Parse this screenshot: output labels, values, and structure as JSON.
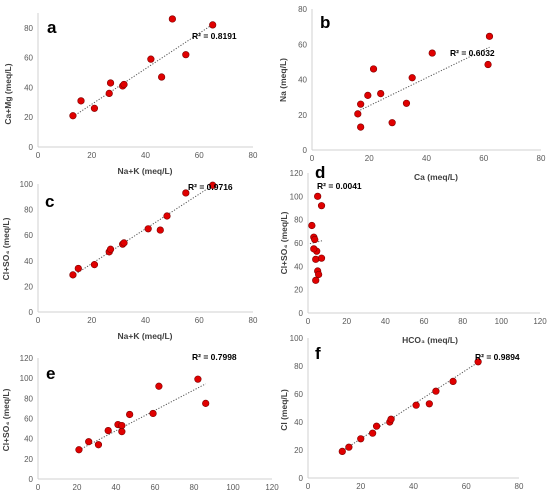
{
  "figure": {
    "marker_color": "#e00000",
    "marker_edge_color": "#7f0000",
    "trend_color": "#555555"
  },
  "chart_data": [
    {
      "type": "scatter",
      "panel_label": "a",
      "xlabel": "Na+K (meq/L)",
      "ylabel": "Ca+Mg (meq/L)",
      "xlim": [
        0,
        80
      ],
      "ylim": [
        0,
        90
      ],
      "xticks": [
        0,
        20,
        40,
        60,
        80
      ],
      "yticks": [
        0,
        20,
        40,
        60,
        80
      ],
      "points": [
        [
          13,
          21
        ],
        [
          16,
          31
        ],
        [
          21,
          26
        ],
        [
          26.5,
          36
        ],
        [
          27,
          43
        ],
        [
          31.5,
          41
        ],
        [
          32,
          42
        ],
        [
          42,
          59
        ],
        [
          46,
          47
        ],
        [
          50,
          86
        ],
        [
          55,
          62
        ],
        [
          65,
          82
        ]
      ],
      "trendline": {
        "slope": 1.191,
        "intercept": 4.9
      },
      "r2_label": "R² = 0.8191"
    },
    {
      "type": "scatter",
      "panel_label": "b",
      "xlabel": "Ca (meq/L)",
      "ylabel": "Na (meq/L)",
      "xlim": [
        0,
        80
      ],
      "ylim": [
        0,
        80
      ],
      "xticks": [
        0,
        20,
        40,
        60,
        80
      ],
      "yticks": [
        0,
        20,
        40,
        60,
        80
      ],
      "points": [
        [
          16,
          20.5
        ],
        [
          17,
          26
        ],
        [
          17,
          13
        ],
        [
          19.5,
          31
        ],
        [
          21.5,
          46
        ],
        [
          24,
          32
        ],
        [
          28,
          15.5
        ],
        [
          33,
          26.5
        ],
        [
          35,
          41
        ],
        [
          42,
          55
        ],
        [
          61.5,
          48.5
        ],
        [
          62,
          64.5
        ]
      ],
      "trendline": {
        "slope": 0.7917,
        "intercept": 9.27
      },
      "r2_label": "R² = 0.6032"
    },
    {
      "type": "scatter",
      "panel_label": "c",
      "xlabel": "Na+K (meq/L)",
      "ylabel": "Cl+SO₄ (meq/L)",
      "xlim": [
        0,
        80
      ],
      "ylim": [
        0,
        100
      ],
      "xticks": [
        0,
        20,
        40,
        60,
        80
      ],
      "yticks": [
        0,
        20,
        40,
        60,
        80,
        100
      ],
      "points": [
        [
          13,
          29
        ],
        [
          15,
          34
        ],
        [
          21,
          37
        ],
        [
          26.5,
          47
        ],
        [
          27,
          49
        ],
        [
          31.5,
          53
        ],
        [
          32,
          54
        ],
        [
          41,
          65
        ],
        [
          45.5,
          64
        ],
        [
          48,
          75
        ],
        [
          55,
          93
        ],
        [
          65,
          99
        ]
      ],
      "trendline": {
        "slope": 1.359,
        "intercept": 10.6
      },
      "r2_label": "R² = 0.9716"
    },
    {
      "type": "scatter",
      "panel_label": "d",
      "xlabel": "HCO₃ (meq/L)",
      "ylabel": "Cl+SO₄ (meq/L)",
      "xlim": [
        0,
        120
      ],
      "ylim": [
        0,
        120
      ],
      "xticks": [
        0,
        20,
        40,
        60,
        80,
        100,
        120
      ],
      "yticks": [
        0,
        20,
        40,
        60,
        80,
        100,
        120
      ],
      "points": [
        [
          2,
          75
        ],
        [
          3,
          65
        ],
        [
          3.5,
          63
        ],
        [
          4.5,
          53
        ],
        [
          4,
          46
        ],
        [
          5,
          36
        ],
        [
          5.5,
          33
        ],
        [
          7,
          47
        ],
        [
          5,
          100
        ],
        [
          7,
          92
        ],
        [
          4,
          28
        ],
        [
          3,
          55
        ]
      ],
      "trendline": {
        "slope": 0.4,
        "intercept": 59
      },
      "trendline_range": [
        1,
        8
      ],
      "r2_label": "R² = 0.0041"
    },
    {
      "type": "scatter",
      "panel_label": "e",
      "xlabel": "Ca+Mg (meq/L)",
      "ylabel": "Cl+SO₄ (meq/L)",
      "xlim": [
        0,
        120
      ],
      "ylim": [
        0,
        120
      ],
      "xticks": [
        0,
        20,
        40,
        60,
        80,
        100,
        120
      ],
      "yticks": [
        0,
        20,
        40,
        60,
        80,
        100,
        120
      ],
      "points": [
        [
          21,
          29
        ],
        [
          26,
          37
        ],
        [
          31,
          34
        ],
        [
          36,
          48
        ],
        [
          41,
          54
        ],
        [
          43,
          53
        ],
        [
          43,
          47
        ],
        [
          47,
          64
        ],
        [
          59,
          65
        ],
        [
          62,
          92
        ],
        [
          82,
          99
        ],
        [
          86,
          75
        ]
      ],
      "trendline": {
        "slope": 1.01,
        "intercept": 7.5
      },
      "r2_label": "R² = 0.7998"
    },
    {
      "type": "scatter",
      "panel_label": "f",
      "xlabel": "Na (meq/L)",
      "ylabel": "Cl (meq/L)",
      "xlim": [
        0,
        80
      ],
      "ylim": [
        0,
        100
      ],
      "xticks": [
        0,
        20,
        40,
        60,
        80
      ],
      "yticks": [
        0,
        20,
        40,
        60,
        80,
        100
      ],
      "points": [
        [
          13,
          19
        ],
        [
          15.5,
          22
        ],
        [
          20,
          28
        ],
        [
          24.5,
          32
        ],
        [
          26,
          37
        ],
        [
          31,
          40
        ],
        [
          31.5,
          42
        ],
        [
          41,
          52
        ],
        [
          46,
          53
        ],
        [
          48.5,
          62
        ],
        [
          55,
          69
        ],
        [
          64.5,
          83
        ]
      ],
      "trendline": {
        "slope": 1.229,
        "intercept": 3.4
      },
      "r2_label": "R² = 0.9894"
    }
  ]
}
